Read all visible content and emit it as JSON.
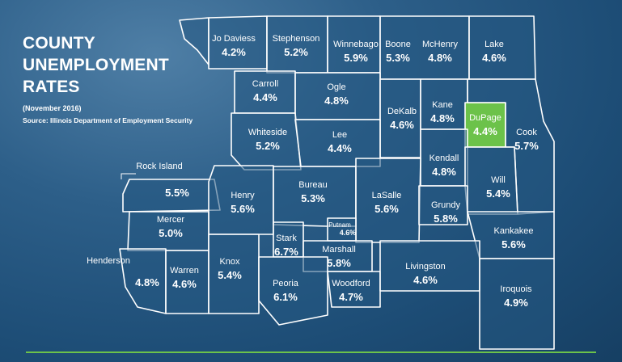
{
  "title_lines": [
    "COUNTY",
    "UNEMPLOYMENT",
    "RATES"
  ],
  "date": "(November 2016)",
  "source": "Source: Illinois Department of Employment Security",
  "colors": {
    "highlight": "#6cc24a",
    "border": "#ffffff",
    "background": "#245782"
  },
  "counties": [
    {
      "name": "Jo Daviess",
      "rate": "4.2%"
    },
    {
      "name": "Stephenson",
      "rate": "5.2%"
    },
    {
      "name": "Winnebago",
      "rate": "5.9%"
    },
    {
      "name": "Boone",
      "rate": "5.3%"
    },
    {
      "name": "McHenry",
      "rate": "4.8%"
    },
    {
      "name": "Lake",
      "rate": "4.6%"
    },
    {
      "name": "Carroll",
      "rate": "4.4%"
    },
    {
      "name": "Ogle",
      "rate": "4.8%"
    },
    {
      "name": "DeKalb",
      "rate": "4.6%"
    },
    {
      "name": "Kane",
      "rate": "4.8%"
    },
    {
      "name": "DuPage",
      "rate": "4.4%",
      "highlight": true
    },
    {
      "name": "Cook",
      "rate": "5.7%"
    },
    {
      "name": "Whiteside",
      "rate": "5.2%"
    },
    {
      "name": "Lee",
      "rate": "4.4%"
    },
    {
      "name": "Kendall",
      "rate": "4.8%"
    },
    {
      "name": "Will",
      "rate": "5.4%"
    },
    {
      "name": "Rock Island",
      "rate": "5.5%"
    },
    {
      "name": "Henry",
      "rate": "5.6%"
    },
    {
      "name": "Bureau",
      "rate": "5.3%"
    },
    {
      "name": "LaSalle",
      "rate": "5.6%"
    },
    {
      "name": "Grundy",
      "rate": "5.8%"
    },
    {
      "name": "Kankakee",
      "rate": "5.6%"
    },
    {
      "name": "Mercer",
      "rate": "5.0%"
    },
    {
      "name": "Putnam",
      "rate": "4.6%"
    },
    {
      "name": "Stark",
      "rate": "6.7%"
    },
    {
      "name": "Marshall",
      "rate": "5.8%"
    },
    {
      "name": "Henderson",
      "rate": "4.8%"
    },
    {
      "name": "Warren",
      "rate": "4.6%"
    },
    {
      "name": "Knox",
      "rate": "5.4%"
    },
    {
      "name": "Peoria",
      "rate": "6.1%"
    },
    {
      "name": "Woodford",
      "rate": "4.7%"
    },
    {
      "name": "Livingston",
      "rate": "4.6%"
    },
    {
      "name": "Iroquois",
      "rate": "4.9%"
    }
  ]
}
